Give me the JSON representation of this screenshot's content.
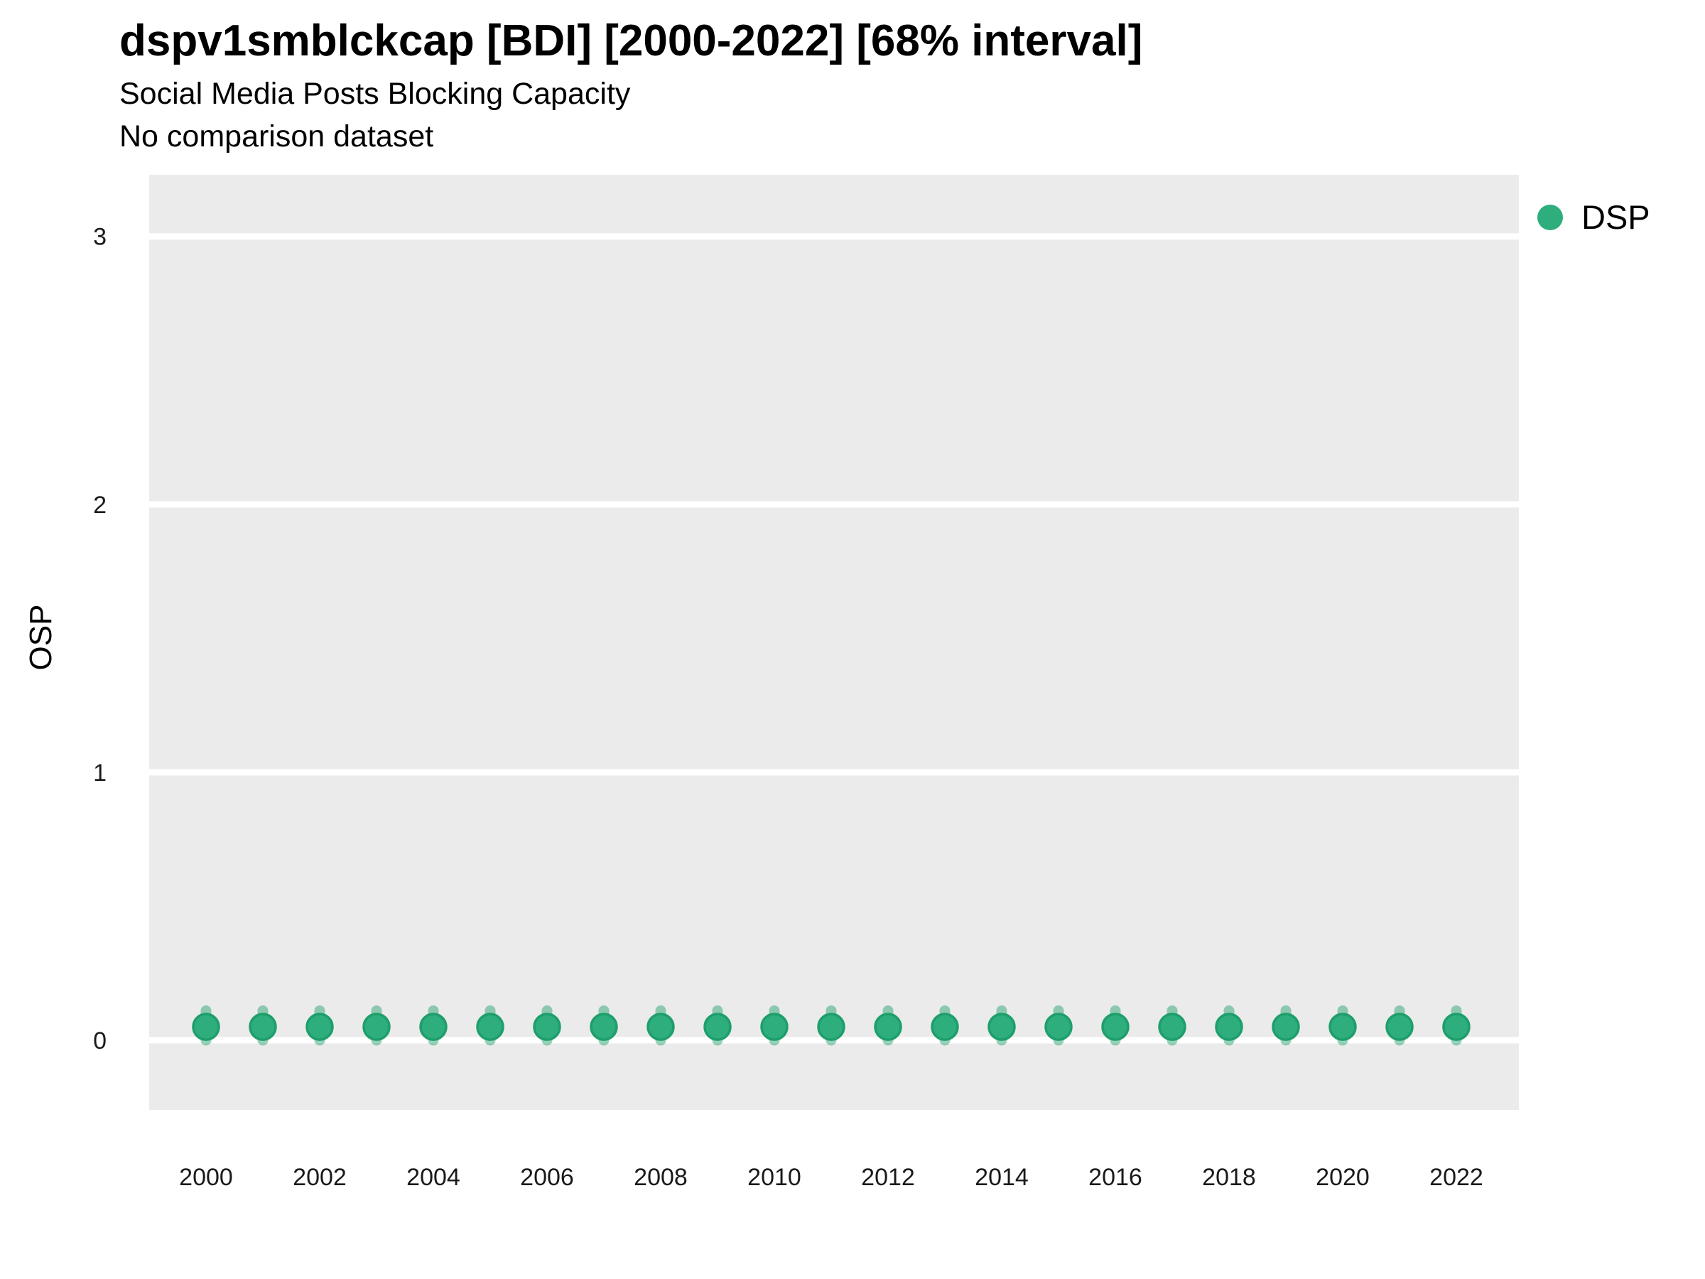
{
  "header": {
    "title": "dspv1smblckcap [BDI] [2000-2022] [68% interval]",
    "subtitle": "Social Media Posts Blocking Capacity",
    "note": "No comparison dataset"
  },
  "legend": {
    "label": "DSP"
  },
  "axes": {
    "y_label": "OSP",
    "y_tick_labels": [
      "0",
      "1",
      "2",
      "3"
    ],
    "x_tick_labels": [
      "2000",
      "2002",
      "2004",
      "2006",
      "2008",
      "2010",
      "2012",
      "2014",
      "2016",
      "2018",
      "2020",
      "2022"
    ]
  },
  "colors": {
    "point_fill": "#2EAD7D",
    "point_stroke": "#1E9E6B",
    "interval_bar": "rgba(45,165,115,0.5)",
    "panel_bg": "#EBEBEB",
    "gridline": "#FFFFFF",
    "tick_text": "#1A1A1A"
  },
  "chart_data": {
    "type": "scatter",
    "title": "dspv1smblckcap [BDI] [2000-2022] [68% interval]",
    "subtitle": "Social Media Posts Blocking Capacity",
    "note": "No comparison dataset",
    "xlabel": "",
    "ylabel": "OSP",
    "interval_level": "68%",
    "xlim": [
      1999.0,
      2023.1
    ],
    "ylim": [
      -0.26,
      3.23
    ],
    "y_ticks": [
      0,
      1,
      2,
      3
    ],
    "x_ticks": [
      2000,
      2002,
      2004,
      2006,
      2008,
      2010,
      2012,
      2014,
      2016,
      2018,
      2020,
      2022
    ],
    "grid": "horizontal-white-on-gray",
    "legend_position": "top-right",
    "series": [
      {
        "name": "DSP",
        "x": [
          2000,
          2001,
          2002,
          2003,
          2004,
          2005,
          2006,
          2007,
          2008,
          2009,
          2010,
          2011,
          2012,
          2013,
          2014,
          2015,
          2016,
          2017,
          2018,
          2019,
          2020,
          2021,
          2022
        ],
        "y": [
          0.05,
          0.05,
          0.05,
          0.05,
          0.05,
          0.05,
          0.05,
          0.05,
          0.05,
          0.05,
          0.05,
          0.05,
          0.05,
          0.05,
          0.05,
          0.05,
          0.05,
          0.05,
          0.05,
          0.05,
          0.05,
          0.05,
          0.05
        ],
        "y_low": [
          0.0,
          0.0,
          0.0,
          0.0,
          0.0,
          0.0,
          0.0,
          0.0,
          0.0,
          0.0,
          0.0,
          0.0,
          0.0,
          0.0,
          0.0,
          0.0,
          0.0,
          0.0,
          0.0,
          0.0,
          0.0,
          0.0,
          0.0
        ],
        "y_high": [
          0.11,
          0.11,
          0.11,
          0.11,
          0.11,
          0.11,
          0.11,
          0.11,
          0.11,
          0.11,
          0.11,
          0.11,
          0.11,
          0.11,
          0.11,
          0.11,
          0.11,
          0.11,
          0.11,
          0.11,
          0.11,
          0.11,
          0.11
        ]
      }
    ]
  }
}
